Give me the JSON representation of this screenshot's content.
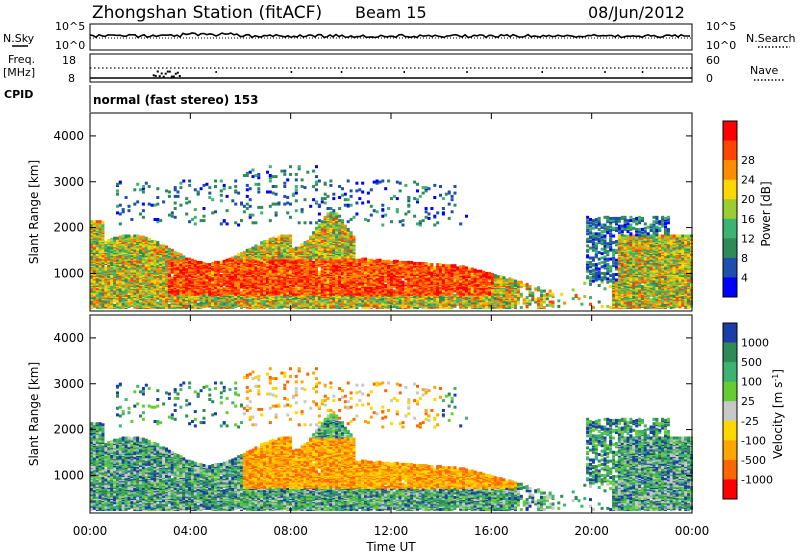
{
  "header": {
    "station": "Zhongshan Station (fitACF)",
    "beam": "Beam 15",
    "date": "08/Jun/2012"
  },
  "panels": {
    "sky": {
      "left_label": "N.Sky",
      "right_label": "N.Search",
      "top_tick": "10^5",
      "bottom_tick": "10^0"
    },
    "freq": {
      "left_label_1": "Freq.",
      "left_label_2": "[MHz]",
      "right_label": "Nave",
      "left_ticks": [
        "18",
        "8"
      ],
      "right_ticks": [
        "60",
        "0"
      ]
    },
    "cpid": {
      "label": "CPID",
      "text": "normal (fast stereo) 153"
    }
  },
  "colors": {
    "power_scale": [
      "#0000ff",
      "#1f4fae",
      "#2e8b57",
      "#3cb371",
      "#9acd32",
      "#ffd700",
      "#ff8c00",
      "#ff4500",
      "#ff0000"
    ],
    "velocity_scale": [
      "#1a3ea8",
      "#2e8b57",
      "#3cb371",
      "#66cc33",
      "#c8c8c8",
      "#ffd700",
      "#ffa500",
      "#ff6600",
      "#ff0000"
    ]
  },
  "chart_data": [
    {
      "type": "heatmap",
      "name": "power",
      "xlabel": "Time UT",
      "ylabel": "Slant Range [km]",
      "x_ticks": [
        "00:00",
        "04:00",
        "08:00",
        "12:00",
        "16:00",
        "20:00",
        "00:00"
      ],
      "y_ticks": [
        "1000",
        "2000",
        "3000",
        "4000"
      ],
      "xlim": [
        0,
        24
      ],
      "ylim": [
        180,
        4500
      ],
      "colorbar": {
        "label": "Power [dB]",
        "ticks": [
          "4",
          "8",
          "12",
          "16",
          "20",
          "24",
          "28"
        ],
        "range": [
          0,
          30
        ]
      }
    },
    {
      "type": "heatmap",
      "name": "velocity",
      "xlabel": "Time UT",
      "ylabel": "Slant Range [km]",
      "x_ticks": [
        "00:00",
        "04:00",
        "08:00",
        "12:00",
        "16:00",
        "20:00",
        "00:00"
      ],
      "y_ticks": [
        "1000",
        "2000",
        "3000",
        "4000"
      ],
      "xlim": [
        0,
        24
      ],
      "ylim": [
        180,
        4500
      ],
      "colorbar": {
        "label": "Velocity [m s^-1]",
        "ticks": [
          "1000",
          "500",
          "100",
          "25",
          "-25",
          "-100",
          "-500",
          "-1000"
        ]
      }
    }
  ]
}
